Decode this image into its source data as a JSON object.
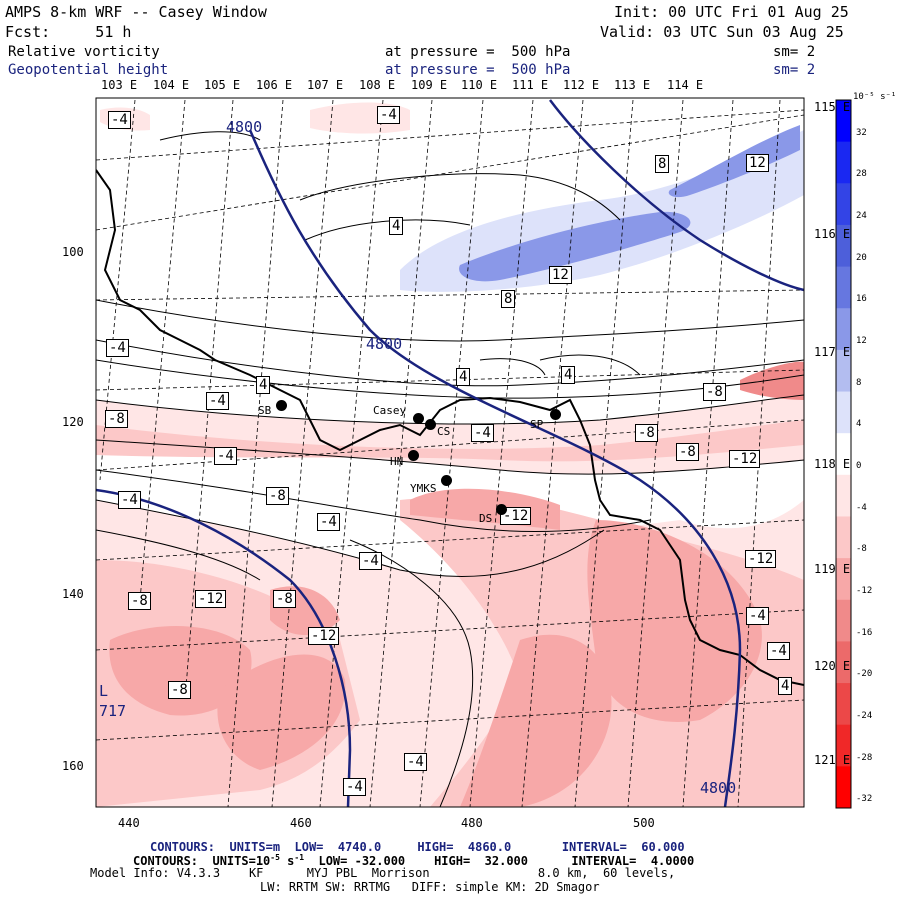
{
  "header": {
    "title": "AMPS 8-km WRF -- Casey Window",
    "init": "Init: 00 UTC Fri 01 Aug 25",
    "fcst": "Fcst:     51 h",
    "valid": "Valid: 03 UTC Sun 03 Aug 25",
    "field1_name": "Relative vorticity",
    "field1_level": "at pressure =  500 hPa",
    "field1_sm": "sm= 2",
    "field2_name": "Geopotential height",
    "field2_level": "at pressure =  500 hPa",
    "field2_sm": "sm= 2"
  },
  "axes": {
    "top_lon_labels": [
      "103 E",
      "104 E",
      "105 E",
      "106 E",
      "107 E",
      "108 E",
      "109 E",
      "110 E",
      "111 E",
      "112 E",
      "113 E",
      "114 E"
    ],
    "right_lon_labels": [
      "115 E",
      "116 E",
      "117 E",
      "118 E",
      "119 E",
      "120 E",
      "121 E"
    ],
    "left_y_ticks": [
      "100",
      "120",
      "140",
      "160"
    ],
    "bottom_x_ticks": [
      "440",
      "460",
      "480",
      "500"
    ]
  },
  "colorbar": {
    "unit": "10⁻⁵ s⁻¹",
    "labels": [
      "32",
      "28",
      "24",
      "20",
      "16",
      "12",
      "8",
      "4",
      "0",
      "-4",
      "-8",
      "-12",
      "-16",
      "-20",
      "-24",
      "-28",
      "-32"
    ],
    "colors": [
      "#0000ff",
      "#1a28f2",
      "#3344e6",
      "#4d5fda",
      "#6677e0",
      "#8a98e8",
      "#b3bdf0",
      "#dde2fa",
      "#ffffff",
      "#ffe6e6",
      "#fcc8c8",
      "#f7a8a8",
      "#f08a8a",
      "#ec6a6a",
      "#ec4848",
      "#f02828",
      "#ff0000"
    ]
  },
  "map_labels": {
    "contours": [
      "4800",
      "4800",
      "4800",
      "-4",
      "-4",
      "4",
      "8",
      "12",
      "12",
      "8",
      "4",
      "4",
      "4",
      "-4",
      "-4",
      "-8",
      "-8",
      "-4",
      "-8",
      "-8",
      "-4",
      "-4",
      "-4",
      "-12",
      "-8",
      "-12",
      "-12",
      "-8",
      "-12",
      "-4",
      "-8",
      "-12",
      "-4",
      "-8",
      "-4",
      "4",
      "-4",
      "-4",
      "-4",
      "-4"
    ],
    "low_marker": "L",
    "low_value": "717",
    "stations": [
      "SB",
      "Casey",
      "CS",
      "HN",
      "YMKS",
      "DS",
      "SP"
    ]
  },
  "footer": {
    "line1_a": "CONTOURS:  UNITS=m  LOW=  4740.0",
    "line1_b": "HIGH=  4860.0",
    "line1_c": "INTERVAL=  60.000",
    "line2_a": "CONTOURS:  UNITS=10",
    "line2_exp": "-5",
    "line2_unit": " s",
    "line2_exp2": "-1",
    "line2_b": "  LOW= -32.000",
    "line2_c": "HIGH=  32.000",
    "line2_d": "INTERVAL=  4.0000",
    "line3": "Model Info: V4.3.3    KF      MYJ PBL  Morrison               8.0 km,  60 levels,",
    "line4": "LW: RRTM SW: RRTMG   DIFF: simple KM: 2D Smagor"
  }
}
